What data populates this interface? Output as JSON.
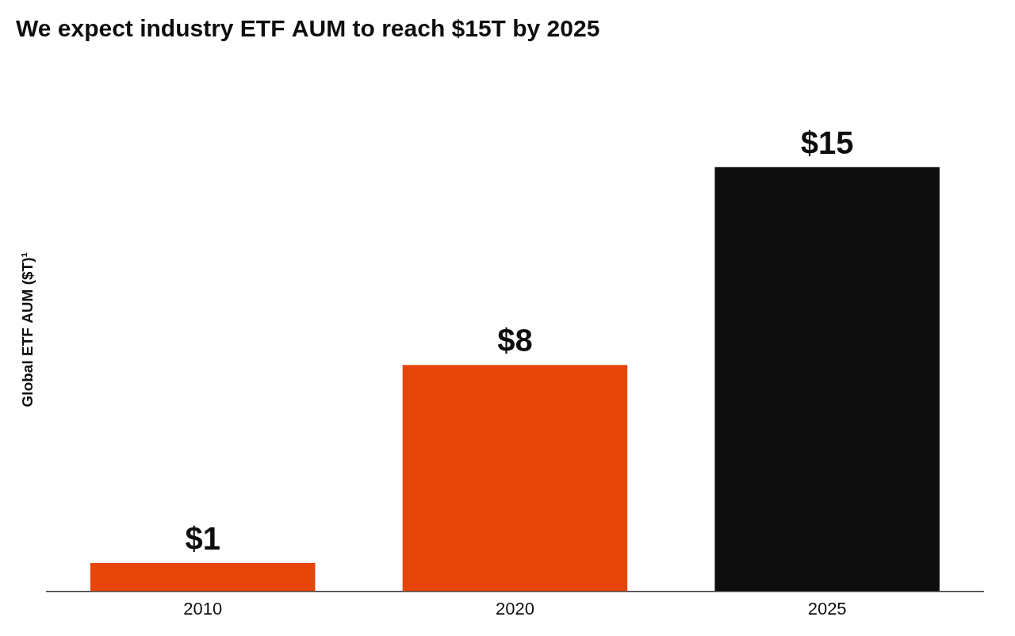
{
  "chart_data": {
    "type": "bar",
    "title": "We expect industry ETF AUM to reach $15T by 2025",
    "y_label": "Global ETF AUM ($T)¹",
    "categories": [
      "2010",
      "2020",
      "2025"
    ],
    "values": [
      1,
      8,
      15
    ],
    "value_labels": [
      "$1",
      "$8",
      "$15"
    ],
    "colors": [
      "#E8450A",
      "#E8450A",
      "#0D0D0D"
    ],
    "ylim": [
      0,
      18.5
    ],
    "yticks": [],
    "grid": false,
    "data_labels": true,
    "tick_labels": "x"
  }
}
